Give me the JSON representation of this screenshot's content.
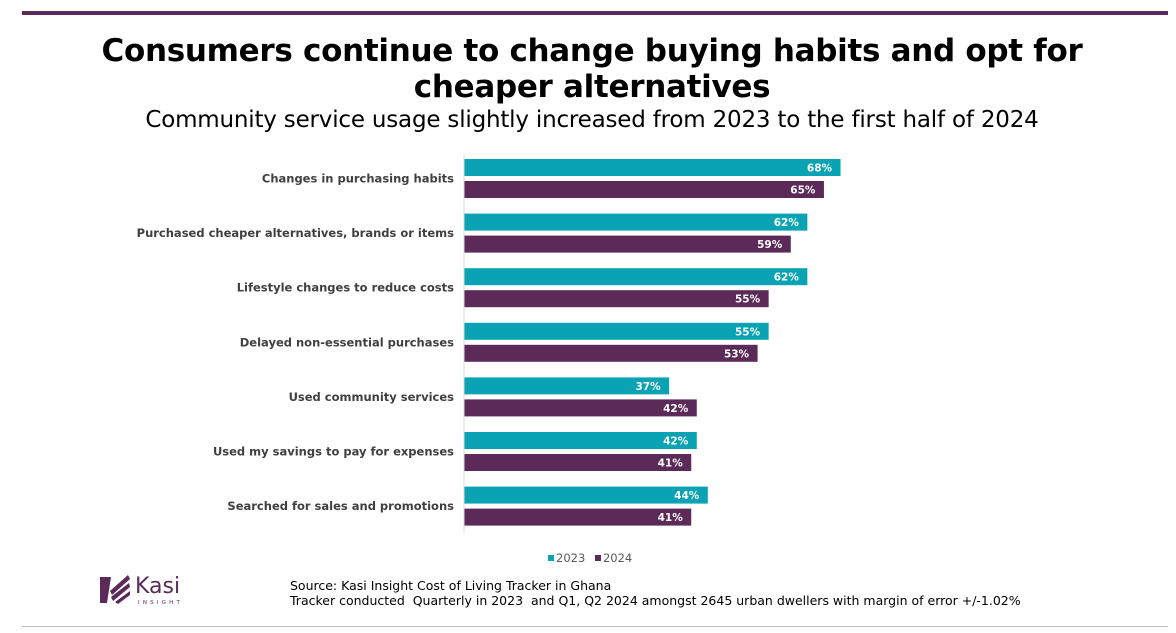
{
  "header": {
    "title": "Consumers continue to change buying habits and opt for cheaper alternatives",
    "subtitle": "Community service usage slightly increased from 2023 to the first half of 2024"
  },
  "colors": {
    "accent_rule": "#5b2a59",
    "series_2023": "#0aa3b3",
    "series_2024": "#5b2a59"
  },
  "chart_data": {
    "type": "bar",
    "orientation": "horizontal",
    "title": "Consumers continue to change buying habits and opt for cheaper alternatives",
    "subtitle": "Community service usage slightly increased from 2023 to the first half of 2024",
    "categories": [
      "Changes in purchasing habits",
      "Purchased cheaper alternatives, brands or items",
      "Lifestyle changes to reduce costs",
      "Delayed non-essential purchases",
      "Used community services",
      "Used my savings to pay for expenses",
      "Searched for sales and promotions"
    ],
    "series": [
      {
        "name": "2023",
        "values": [
          68,
          62,
          62,
          55,
          37,
          42,
          44
        ]
      },
      {
        "name": "2024",
        "values": [
          65,
          59,
          55,
          53,
          42,
          41,
          41
        ]
      }
    ],
    "value_suffix": "%",
    "xlim": [
      0,
      100
    ],
    "grid": false,
    "legend_position": "bottom"
  },
  "legend": {
    "items": [
      "2023",
      "2024"
    ]
  },
  "logo": {
    "name": "Kasi",
    "subtitle": "INSIGHT"
  },
  "footer": {
    "source_line1": "Source: Kasi Insight Cost of Living Tracker in Ghana",
    "source_line2": "Tracker conducted  Quarterly in 2023  and Q1, Q2 2024 amongst 2645 urban dwellers with margin of error +/-1.02%"
  }
}
